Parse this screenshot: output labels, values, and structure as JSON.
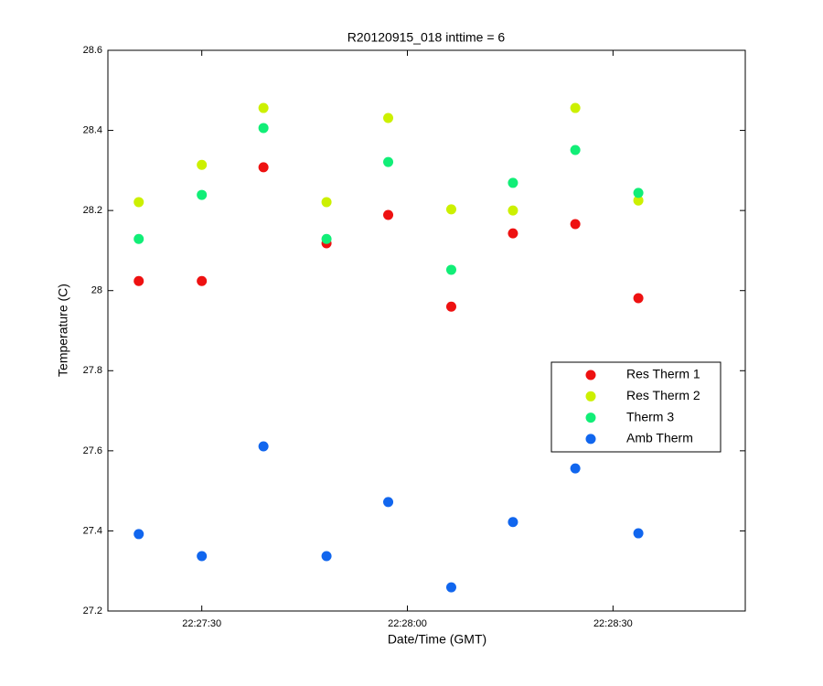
{
  "chart_data": {
    "type": "scatter",
    "title": "R20120915_018 inttime = 6",
    "x_label": "Date/Time (GMT)",
    "y_label": "Temperature (C)",
    "x": [
      80840.8,
      80850.0,
      80859.0,
      80868.2,
      80877.2,
      80886.4,
      80895.4,
      80904.5,
      80913.7
    ],
    "series": [
      {
        "name": "Res Therm 1",
        "color": "#ee1111",
        "values": [
          28.024,
          28.024,
          28.308,
          28.118,
          28.189,
          27.96,
          28.143,
          28.166,
          27.981
        ]
      },
      {
        "name": "Res Therm 2",
        "color": "#ccf000",
        "values": [
          28.221,
          28.314,
          28.456,
          28.221,
          28.431,
          28.203,
          28.2,
          28.456,
          28.225
        ]
      },
      {
        "name": "Therm 3",
        "color": "#11ee77",
        "values": [
          28.129,
          28.239,
          28.406,
          28.129,
          28.321,
          28.052,
          28.269,
          28.351,
          28.244
        ]
      },
      {
        "name": "Amb Therm",
        "color": "#1166ee",
        "values": [
          27.392,
          27.337,
          27.611,
          27.337,
          27.472,
          27.259,
          27.422,
          27.556,
          27.394
        ]
      }
    ],
    "xlim": [
      80836.3,
      80929.3
    ],
    "xticks": [
      {
        "value": 80850,
        "label": "22:27:30"
      },
      {
        "value": 80880,
        "label": "22:28:00"
      },
      {
        "value": 80910,
        "label": "22:28:30"
      }
    ],
    "ylim": [
      27.2,
      28.6
    ],
    "yticks": [
      27.2,
      27.4,
      27.6,
      27.8,
      28,
      28.2,
      28.4,
      28.6
    ],
    "grid": false,
    "legend": "east"
  }
}
